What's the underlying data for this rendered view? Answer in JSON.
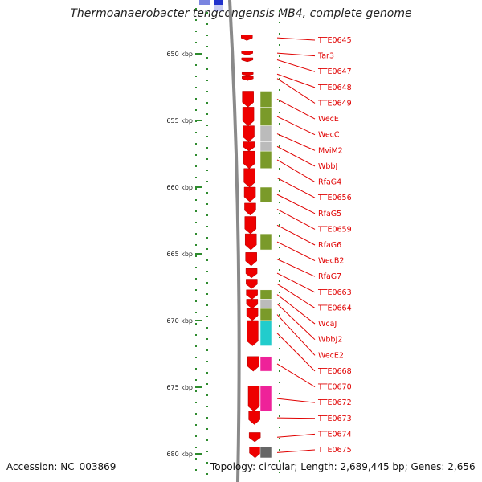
{
  "header": {
    "title": "Thermoanaerobacter tengcongensis MB4, complete genome"
  },
  "footer": {
    "accession": "Accession: NC_003869",
    "summary": "Topology: circular; Length: 2,689,445 bp; Genes: 2,656"
  },
  "colors": {
    "backbone": "#8a8a8a",
    "gene_forward": "#ee0000",
    "gene_label": "#e00000",
    "tick": "#2e8b2e",
    "cog_olive": "#7a9a2a",
    "cog_gray": "#bbbbbb",
    "cog_cyan": "#22cccc",
    "cog_magenta": "#ee2299",
    "cog_dark": "#666666",
    "top_blue": "#2233cc"
  },
  "ruler": {
    "marks": [
      {
        "label": "650 kbp",
        "kbp": 650
      },
      {
        "label": "655 kbp",
        "kbp": 655
      },
      {
        "label": "660 kbp",
        "kbp": 660
      },
      {
        "label": "665 kbp",
        "kbp": 665
      },
      {
        "label": "670 kbp",
        "kbp": 670
      },
      {
        "label": "675 kbp",
        "kbp": 675
      },
      {
        "label": "680 kbp",
        "kbp": 680
      }
    ]
  },
  "genes": [
    {
      "name": "TTE0645",
      "start": 648.6,
      "end": 649.0,
      "cog": ""
    },
    {
      "name": "Tar3",
      "start": 649.8,
      "end": 650.1,
      "cog": ""
    },
    {
      "name": "TTE0647",
      "start": 650.3,
      "end": 650.6,
      "cog": ""
    },
    {
      "name": "TTE0648",
      "start": 651.4,
      "end": 651.6,
      "cog": ""
    },
    {
      "name": "TTE0649",
      "start": 651.7,
      "end": 652.0,
      "cog": ""
    },
    {
      "name": "WecE",
      "start": 652.8,
      "end": 654.0,
      "cog": "olive"
    },
    {
      "name": "WecC",
      "start": 654.0,
      "end": 655.4,
      "cog": "olive"
    },
    {
      "name": "MviM2",
      "start": 655.4,
      "end": 656.6,
      "cog": "gray"
    },
    {
      "name": "WbbJ",
      "start": 656.6,
      "end": 657.3,
      "cog": "gray"
    },
    {
      "name": "RfaG4",
      "start": 657.3,
      "end": 658.6,
      "cog": "olive"
    },
    {
      "name": "TTE0656",
      "start": 658.6,
      "end": 660.0,
      "cog": ""
    },
    {
      "name": "RfaG5",
      "start": 660.0,
      "end": 661.1,
      "cog": "olive"
    },
    {
      "name": "TTE0659",
      "start": 661.2,
      "end": 662.1,
      "cog": ""
    },
    {
      "name": "RfaG6",
      "start": 662.2,
      "end": 663.5,
      "cog": ""
    },
    {
      "name": "WecB2",
      "start": 663.5,
      "end": 664.7,
      "cog": "olive"
    },
    {
      "name": "RfaG7",
      "start": 664.9,
      "end": 665.9,
      "cog": ""
    },
    {
      "name": "TTE0663",
      "start": 666.1,
      "end": 666.8,
      "cog": ""
    },
    {
      "name": "TTE0664",
      "start": 666.9,
      "end": 667.6,
      "cog": ""
    },
    {
      "name": "WcaJ",
      "start": 667.7,
      "end": 668.4,
      "cog": "olive"
    },
    {
      "name": "WbbJ2",
      "start": 668.4,
      "end": 669.1,
      "cog": "gray"
    },
    {
      "name": "WecE2",
      "start": 669.1,
      "end": 670.0,
      "cog": "olive"
    },
    {
      "name": "TTE0668",
      "start": 670.0,
      "end": 671.9,
      "cog": "cyan"
    },
    {
      "name": "TTE0670",
      "start": 672.7,
      "end": 673.8,
      "cog": "magenta"
    },
    {
      "name": "TTE0672",
      "start": 674.9,
      "end": 676.8,
      "cog": "magenta"
    },
    {
      "name": "TTE0673",
      "start": 676.8,
      "end": 677.8,
      "cog": ""
    },
    {
      "name": "TTE0674",
      "start": 678.4,
      "end": 679.1,
      "cog": ""
    },
    {
      "name": "TTE0675",
      "start": 679.5,
      "end": 680.3,
      "cog": "dark"
    }
  ]
}
